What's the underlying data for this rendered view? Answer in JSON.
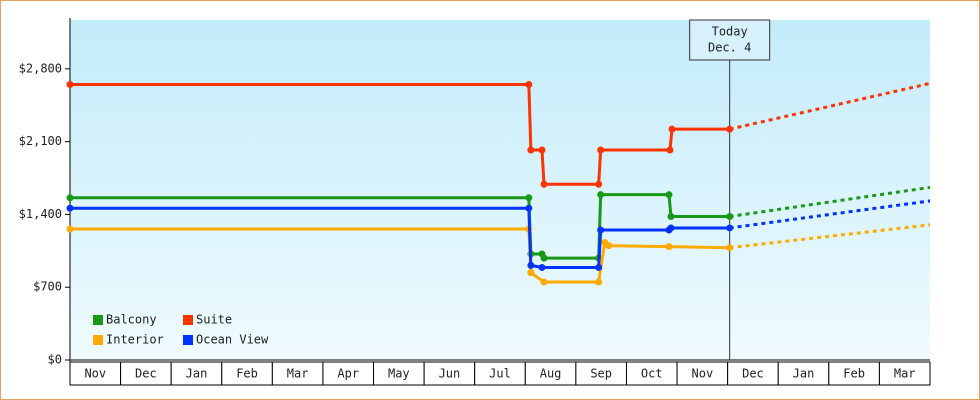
{
  "chart_data": {
    "type": "line",
    "categories": [
      "Nov",
      "Dec",
      "Jan",
      "Feb",
      "Mar",
      "Apr",
      "May",
      "Jun",
      "Jul",
      "Aug",
      "Sep",
      "Oct",
      "Nov",
      "Dec",
      "Jan",
      "Feb",
      "Mar"
    ],
    "xlim": [
      0,
      17
    ],
    "ylim": [
      0,
      3270
    ],
    "yticks": [
      {
        "value": 0,
        "label": "$0"
      },
      {
        "value": 700,
        "label": "$700"
      },
      {
        "value": 1400,
        "label": "$1,400"
      },
      {
        "value": 2100,
        "label": "$2,100"
      },
      {
        "value": 2800,
        "label": "$2,800"
      }
    ],
    "annotation": {
      "x": 13.04,
      "text": [
        "Today",
        "Dec. 4"
      ]
    },
    "legend": "lower left",
    "series": [
      {
        "name": "Balcony",
        "color": "#189a18",
        "x": [
          0,
          9.07,
          9.11,
          9.33,
          9.37,
          10.45,
          10.49,
          11.84,
          11.88,
          13.04,
          17
        ],
        "values": [
          1560,
          1560,
          1020,
          1020,
          980,
          980,
          1590,
          1590,
          1380,
          1380,
          1660
        ]
      },
      {
        "name": "Suite",
        "color": "#ff3300",
        "x": [
          0,
          9.07,
          9.11,
          9.33,
          9.37,
          10.45,
          10.49,
          11.86,
          11.9,
          13.04,
          17
        ],
        "values": [
          2650,
          2650,
          2020,
          2020,
          1690,
          1690,
          2020,
          2020,
          2220,
          2220,
          2660
        ]
      },
      {
        "name": "Interior",
        "color": "#ffaa00",
        "x": [
          0,
          9.07,
          9.11,
          9.37,
          10.45,
          10.57,
          10.65,
          11.84,
          13.04,
          17
        ],
        "values": [
          1260,
          1260,
          840,
          750,
          750,
          1130,
          1100,
          1090,
          1080,
          1300
        ]
      },
      {
        "name": "Ocean View",
        "color": "#0033ff",
        "x": [
          0,
          9.07,
          9.11,
          9.33,
          10.45,
          10.49,
          11.84,
          11.88,
          13.04,
          17
        ],
        "values": [
          1460,
          1460,
          910,
          890,
          890,
          1250,
          1250,
          1270,
          1270,
          1530
        ]
      }
    ]
  }
}
